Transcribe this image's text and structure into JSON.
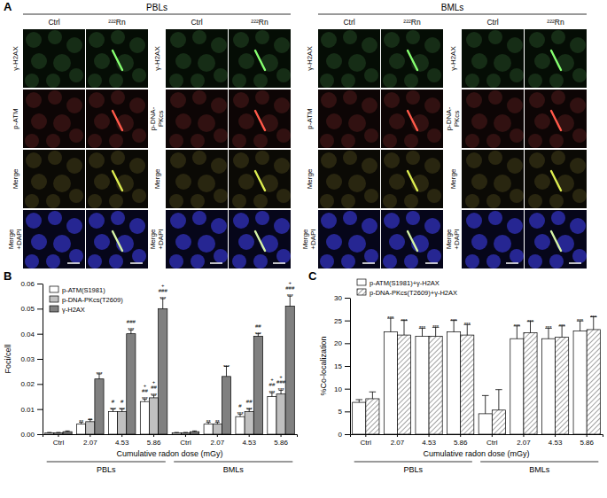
{
  "figure_a": {
    "label": "A",
    "columns": [
      "Ctrl",
      "²²²Rn"
    ],
    "groups": [
      {
        "title": "PBLs",
        "panels": [
          {
            "rows": [
              [
                "γ-H2AX"
              ],
              [
                "p-ATM"
              ],
              [
                "Merge"
              ],
              [
                "Merge",
                "+DAPI"
              ]
            ]
          },
          {
            "rows": [
              [
                "γ-H2AX"
              ],
              [
                "p-DNA-",
                "PKcs"
              ],
              [
                "Merge"
              ],
              [
                "Merge",
                "+DAPI"
              ]
            ]
          }
        ]
      },
      {
        "title": "BMLs",
        "panels": [
          {
            "rows": [
              [
                "γ-H2AX"
              ],
              [
                "p-ATM"
              ],
              [
                "Merge"
              ],
              [
                "Merge",
                "+DAPI"
              ]
            ]
          },
          {
            "rows": [
              [
                "γ-H2AX"
              ],
              [
                "p-DNA-",
                "PKcs"
              ],
              [
                "Merge"
              ],
              [
                "Merge",
                "+DAPI"
              ]
            ]
          }
        ]
      }
    ]
  },
  "chart_data": [
    {
      "type": "bar",
      "title": "B",
      "x_label": "Cumulative radon dose (mGy)",
      "y_label": "Foci/cell",
      "categories": [
        "Ctrl",
        "2.07",
        "4.53",
        "5.86",
        "Ctrl",
        "2.07",
        "4.53",
        "5.86"
      ],
      "groups": [
        "PBLs",
        "BMLs"
      ],
      "ylim": [
        0,
        0.06
      ],
      "yticks": [
        {
          "value": 0,
          "label": "0.00"
        },
        {
          "value": 0.01,
          "label": "0.01"
        },
        {
          "value": 0.02,
          "label": "0.02"
        },
        {
          "value": 0.03,
          "label": "0.03"
        },
        {
          "value": 0.04,
          "label": "0.04"
        },
        {
          "value": 0.05,
          "label": "0.05"
        },
        {
          "value": 0.06,
          "label": "0.06"
        }
      ],
      "legend": "upper left",
      "series": [
        {
          "name": "p-ATM(S1981)",
          "color": "#ffffff",
          "values": [
            0.0005,
            0.004,
            0.009,
            0.013,
            0.0005,
            0.004,
            0.007,
            0.015
          ],
          "errors": [
            0.0002,
            0.0008,
            0.001,
            0.001,
            0.0002,
            0.0008,
            0.001,
            0.0015
          ],
          "annotations": [
            null,
            [
              "**"
            ],
            [
              "***",
              "#"
            ],
            [
              "***",
              "##",
              "+"
            ],
            null,
            [
              "**"
            ],
            [
              "***",
              "#"
            ],
            [
              "***",
              "##",
              "+"
            ]
          ]
        },
        {
          "name": "p-DNA-PKcs(T2609)",
          "color": "#c0c0c0",
          "values": [
            0.0005,
            0.005,
            0.009,
            0.0145,
            0.0005,
            0.004,
            0.009,
            0.016
          ],
          "errors": [
            0.0002,
            0.0008,
            0.001,
            0.001,
            0.0002,
            0.0008,
            0.001,
            0.0015
          ],
          "annotations": [
            null,
            [
              "**"
            ],
            [
              "***",
              "#"
            ],
            [
              "***",
              "##",
              "+"
            ],
            null,
            [
              "**"
            ],
            [
              "***",
              "##"
            ],
            [
              "***",
              "###",
              "+"
            ]
          ]
        },
        {
          "name": "γ-H2AX",
          "color": "#808080",
          "values": [
            0.001,
            0.022,
            0.04,
            0.05,
            0.001,
            0.023,
            0.039,
            0.051
          ],
          "errors": [
            0.0003,
            0.002,
            0.0015,
            0.004,
            0.0003,
            0.004,
            0.001,
            0.004
          ],
          "annotations": [
            null,
            [
              "***"
            ],
            [
              "***",
              "###"
            ],
            [
              "***",
              "###",
              "+"
            ],
            null,
            [
              "***"
            ],
            [
              "***",
              "##"
            ],
            [
              "***",
              "###",
              "+"
            ]
          ]
        }
      ]
    },
    {
      "type": "bar",
      "title": "C",
      "x_label": "Cumulative radon dose (mGy)",
      "y_label": "%Co-localization",
      "categories": [
        "Ctrl",
        "2.07",
        "4.53",
        "5.86",
        "Ctrl",
        "2.07",
        "4.53",
        "5.86"
      ],
      "groups": [
        "PBLs",
        "BMLs"
      ],
      "ylim": [
        0,
        30
      ],
      "yticks": [
        0,
        5,
        10,
        15,
        20,
        25,
        30
      ],
      "legend": "top",
      "series": [
        {
          "name": "p-ATM(S1981)+γ-H2AX",
          "color": "#ffffff",
          "values": [
            7,
            22.5,
            21.5,
            22.5,
            4.5,
            21,
            21,
            22.7
          ],
          "errors": [
            0.6,
            3,
            1.8,
            2.5,
            4,
            2.8,
            2.3,
            2.2
          ],
          "annotations": [
            null,
            [
              "***"
            ],
            [
              "***"
            ],
            [
              "***"
            ],
            null,
            [
              "***"
            ],
            [
              "***"
            ],
            [
              "***"
            ]
          ]
        },
        {
          "name": "p-DNA-PKcs(T2609)+γ-H2AX",
          "color": "#8a8a8a",
          "line_style": "hatched",
          "values": [
            7.8,
            21.8,
            21.5,
            21.8,
            5.3,
            22.3,
            21.3,
            23
          ],
          "errors": [
            1.5,
            3.2,
            2,
            2.3,
            4.5,
            2.5,
            2.5,
            2.8
          ],
          "annotations": [
            null,
            [
              "***"
            ],
            [
              "***"
            ],
            [
              "***"
            ],
            null,
            [
              "***"
            ],
            [
              "***"
            ],
            [
              "***"
            ]
          ]
        }
      ]
    }
  ]
}
